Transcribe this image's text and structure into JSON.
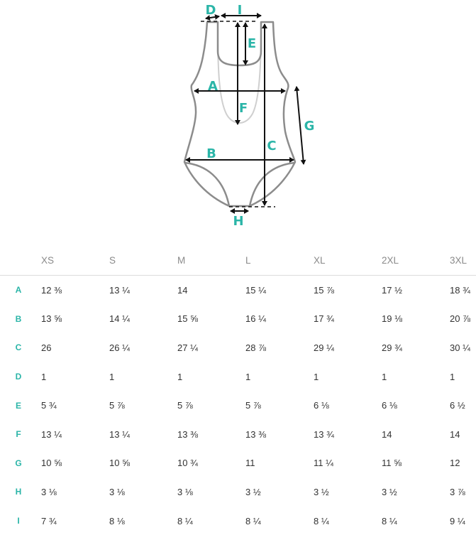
{
  "diagram": {
    "labels": [
      "A",
      "B",
      "C",
      "D",
      "E",
      "F",
      "G",
      "H",
      "I"
    ],
    "outline_color": "#8c8c8c",
    "accent_color": "#2bb5a8"
  },
  "table": {
    "columns": [
      "XS",
      "S",
      "M",
      "L",
      "XL",
      "2XL",
      "3XL"
    ],
    "rows": [
      {
        "label": "A",
        "values": [
          "12 ⅜",
          "13 ¼",
          "14",
          "15 ¼",
          "15 ⅞",
          "17 ½",
          "18 ¾"
        ]
      },
      {
        "label": "B",
        "values": [
          "13 ⅝",
          "14 ¼",
          "15 ⅝",
          "16 ¼",
          "17 ¾",
          "19 ⅛",
          "20 ⅞"
        ]
      },
      {
        "label": "C",
        "values": [
          "26",
          "26 ¼",
          "27 ¼",
          "28 ⅞",
          "29 ¼",
          "29 ¾",
          "30 ¼"
        ]
      },
      {
        "label": "D",
        "values": [
          "1",
          "1",
          "1",
          "1",
          "1",
          "1",
          "1"
        ]
      },
      {
        "label": "E",
        "values": [
          "5 ¾",
          "5 ⅞",
          "5 ⅞",
          "5 ⅞",
          "6 ⅛",
          "6 ⅛",
          "6 ½"
        ]
      },
      {
        "label": "F",
        "values": [
          "13 ¼",
          "13 ¼",
          "13 ⅜",
          "13 ⅜",
          "13 ¾",
          "14",
          "14"
        ]
      },
      {
        "label": "G",
        "values": [
          "10 ⅝",
          "10 ⅝",
          "10 ¾",
          "11",
          "11 ¼",
          "11 ⅝",
          "12"
        ]
      },
      {
        "label": "H",
        "values": [
          "3 ⅛",
          "3 ⅛",
          "3 ⅛",
          "3 ½",
          "3 ½",
          "3 ½",
          "3 ⅞"
        ]
      },
      {
        "label": "I",
        "values": [
          "7 ¾",
          "8 ⅛",
          "8 ¼",
          "8 ¼",
          "8 ¼",
          "8 ¼",
          "9 ¼"
        ]
      }
    ]
  }
}
